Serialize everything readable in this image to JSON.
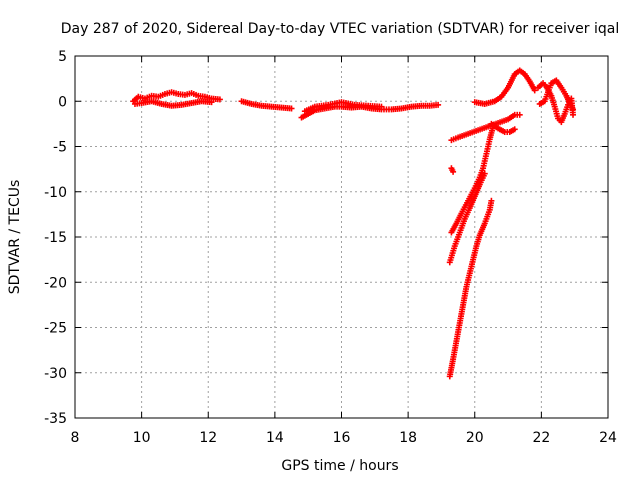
{
  "chart_data": {
    "type": "scatter",
    "title": "Day 287 of 2020, Sidereal Day-to-day VTEC variation (SDTVAR) for receiver iqal",
    "xlabel": "GPS time / hours",
    "ylabel": "SDTVAR / TECUs",
    "xlim": [
      8,
      24
    ],
    "ylim": [
      -35,
      5
    ],
    "xticks": [
      "8",
      "10",
      "12",
      "14",
      "16",
      "18",
      "20",
      "22",
      "24"
    ],
    "yticks": [
      "5",
      "0",
      "-5",
      "-10",
      "-15",
      "-20",
      "-25",
      "-30",
      "-35"
    ],
    "grid": true,
    "marker": "plus",
    "color": "#ff0000",
    "series": [
      {
        "name": "SDTVAR",
        "segments": [
          [
            [
              9.75,
              0.0
            ],
            [
              9.9,
              0.5
            ],
            [
              10.1,
              0.3
            ],
            [
              10.3,
              0.6
            ],
            [
              10.5,
              0.5
            ],
            [
              10.7,
              0.8
            ],
            [
              10.9,
              1.0
            ],
            [
              11.1,
              0.8
            ],
            [
              11.3,
              0.7
            ],
            [
              11.5,
              0.9
            ],
            [
              11.7,
              0.6
            ],
            [
              11.9,
              0.5
            ],
            [
              12.1,
              0.3
            ],
            [
              12.35,
              0.2
            ]
          ],
          [
            [
              9.8,
              -0.3
            ],
            [
              10.0,
              -0.2
            ],
            [
              10.3,
              0.0
            ],
            [
              10.6,
              -0.3
            ],
            [
              10.9,
              -0.5
            ],
            [
              11.2,
              -0.4
            ],
            [
              11.5,
              -0.2
            ],
            [
              11.8,
              0.0
            ],
            [
              12.1,
              -0.1
            ]
          ],
          [
            [
              13.0,
              0.0
            ],
            [
              13.3,
              -0.3
            ],
            [
              13.6,
              -0.5
            ],
            [
              13.9,
              -0.6
            ],
            [
              14.2,
              -0.7
            ],
            [
              14.5,
              -0.8
            ]
          ],
          [
            [
              14.8,
              -1.8
            ],
            [
              15.0,
              -1.4
            ],
            [
              15.2,
              -1.0
            ],
            [
              15.5,
              -0.8
            ],
            [
              15.8,
              -0.6
            ],
            [
              16.0,
              -0.6
            ],
            [
              16.3,
              -0.7
            ],
            [
              16.6,
              -0.6
            ],
            [
              16.9,
              -0.8
            ],
            [
              17.2,
              -0.9
            ],
            [
              17.5,
              -0.9
            ],
            [
              17.8,
              -0.8
            ],
            [
              18.1,
              -0.6
            ],
            [
              18.4,
              -0.5
            ],
            [
              18.65,
              -0.5
            ],
            [
              18.9,
              -0.4
            ]
          ],
          [
            [
              14.9,
              -1.1
            ],
            [
              15.2,
              -0.6
            ],
            [
              15.6,
              -0.4
            ],
            [
              16.0,
              -0.1
            ],
            [
              16.4,
              -0.4
            ],
            [
              16.8,
              -0.5
            ],
            [
              17.2,
              -0.6
            ]
          ],
          [
            [
              20.0,
              -0.1
            ],
            [
              20.3,
              -0.3
            ],
            [
              20.6,
              0.0
            ],
            [
              20.8,
              0.5
            ],
            [
              21.0,
              1.5
            ],
            [
              21.2,
              3.0
            ],
            [
              21.35,
              3.4
            ],
            [
              21.5,
              3.0
            ],
            [
              21.65,
              2.2
            ],
            [
              21.8,
              1.2
            ]
          ],
          [
            [
              21.9,
              1.5
            ],
            [
              22.05,
              2.0
            ],
            [
              22.15,
              1.6
            ],
            [
              22.3,
              0.6
            ],
            [
              22.4,
              -0.6
            ],
            [
              22.5,
              -1.9
            ],
            [
              22.6,
              -2.3
            ],
            [
              22.7,
              -1.4
            ],
            [
              22.8,
              -0.4
            ],
            [
              22.9,
              0.3
            ],
            [
              22.95,
              -1.5
            ]
          ],
          [
            [
              21.95,
              -0.3
            ],
            [
              22.1,
              0.0
            ],
            [
              22.3,
              2.0
            ],
            [
              22.45,
              2.3
            ],
            [
              22.6,
              1.5
            ],
            [
              22.75,
              0.6
            ],
            [
              22.85,
              -0.2
            ],
            [
              22.95,
              -0.9
            ]
          ],
          [
            [
              19.3,
              -4.3
            ],
            [
              19.5,
              -4.0
            ],
            [
              19.8,
              -3.6
            ],
            [
              20.1,
              -3.2
            ],
            [
              20.4,
              -2.8
            ],
            [
              20.7,
              -2.4
            ],
            [
              21.0,
              -2.0
            ],
            [
              21.2,
              -1.5
            ],
            [
              21.35,
              -1.5
            ]
          ],
          [
            [
              20.5,
              -2.5
            ],
            [
              20.7,
              -3.0
            ],
            [
              20.9,
              -3.4
            ],
            [
              21.05,
              -3.4
            ],
            [
              21.2,
              -3.1
            ]
          ],
          [
            [
              19.3,
              -7.4
            ],
            [
              19.35,
              -7.8
            ]
          ],
          [
            [
              19.3,
              -14.5
            ],
            [
              19.45,
              -13.5
            ],
            [
              19.6,
              -12.4
            ],
            [
              19.8,
              -11.0
            ],
            [
              20.0,
              -9.6
            ],
            [
              20.15,
              -8.4
            ],
            [
              20.25,
              -7.4
            ],
            [
              20.35,
              -5.8
            ],
            [
              20.45,
              -4.2
            ],
            [
              20.55,
              -2.8
            ]
          ],
          [
            [
              19.25,
              -17.8
            ],
            [
              19.4,
              -16.0
            ],
            [
              19.55,
              -14.5
            ],
            [
              19.7,
              -13.0
            ],
            [
              19.85,
              -11.8
            ],
            [
              20.0,
              -10.5
            ],
            [
              20.15,
              -9.2
            ],
            [
              20.3,
              -8.0
            ]
          ],
          [
            [
              19.25,
              -30.4
            ],
            [
              19.35,
              -28.5
            ],
            [
              19.45,
              -26.5
            ],
            [
              19.55,
              -24.5
            ],
            [
              19.65,
              -22.5
            ],
            [
              19.75,
              -20.5
            ],
            [
              19.85,
              -19.0
            ],
            [
              19.95,
              -17.5
            ],
            [
              20.05,
              -16.0
            ],
            [
              20.15,
              -14.8
            ],
            [
              20.3,
              -13.5
            ],
            [
              20.45,
              -12.0
            ],
            [
              20.5,
              -11.0
            ]
          ]
        ]
      }
    ]
  }
}
